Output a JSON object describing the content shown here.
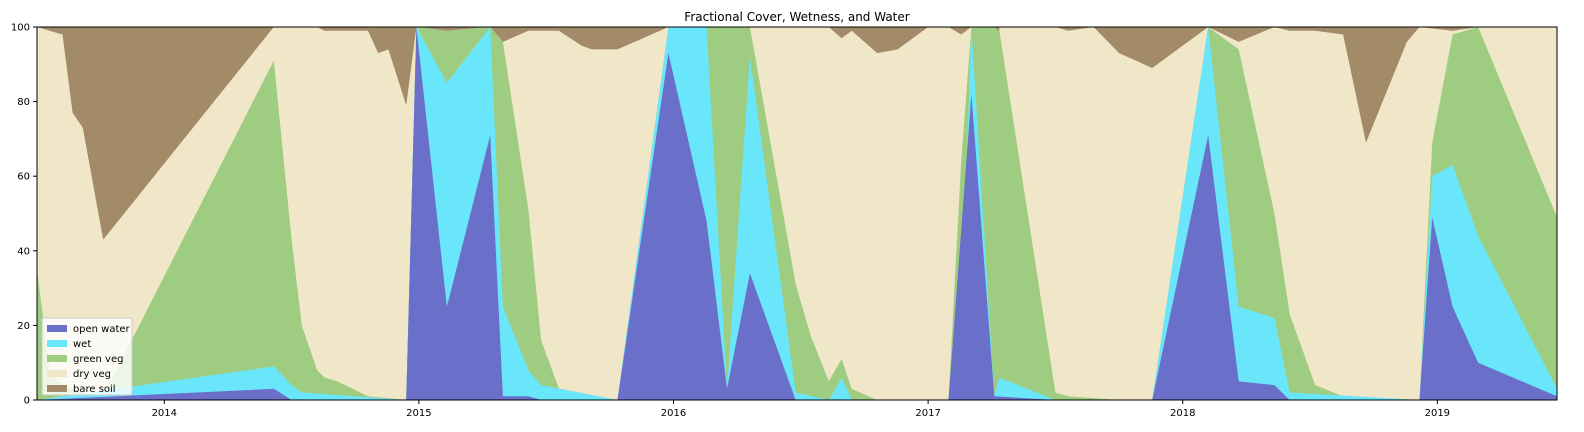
{
  "chart_data": {
    "type": "area",
    "stacked": true,
    "title": "Fractional Cover, Wetness, and Water",
    "xlabel": "",
    "ylabel": "",
    "xlim": [
      2013.5,
      2019.47
    ],
    "ylim": [
      0,
      100
    ],
    "xticks": [
      2014,
      2015,
      2016,
      2017,
      2018,
      2019
    ],
    "xtick_labels": [
      "2014",
      "2015",
      "2016",
      "2017",
      "2018",
      "2019"
    ],
    "yticks": [
      0,
      20,
      40,
      60,
      80,
      100
    ],
    "ytick_labels": [
      "0",
      "20",
      "40",
      "60",
      "80",
      "100"
    ],
    "grid": false,
    "legend_position": "bottom-left",
    "series": [
      {
        "name": "open water",
        "color": "#6a70c9",
        "points": [
          [
            2013.5,
            0
          ],
          [
            2014.43,
            3
          ],
          [
            2014.5,
            0
          ],
          [
            2014.95,
            0
          ],
          [
            2014.99,
            100
          ],
          [
            2015.11,
            25
          ],
          [
            2015.28,
            71
          ],
          [
            2015.33,
            1
          ],
          [
            2015.43,
            1
          ],
          [
            2015.48,
            0
          ],
          [
            2015.78,
            0
          ],
          [
            2015.98,
            93
          ],
          [
            2016.13,
            48
          ],
          [
            2016.21,
            3
          ],
          [
            2016.3,
            34
          ],
          [
            2016.48,
            0
          ],
          [
            2017.08,
            0
          ],
          [
            2017.17,
            82
          ],
          [
            2017.26,
            1
          ],
          [
            2017.5,
            0
          ],
          [
            2017.88,
            0
          ],
          [
            2018.1,
            71
          ],
          [
            2018.22,
            5
          ],
          [
            2018.36,
            4
          ],
          [
            2018.42,
            0
          ],
          [
            2018.93,
            0
          ],
          [
            2018.98,
            49
          ],
          [
            2019.06,
            25
          ],
          [
            2019.16,
            10
          ],
          [
            2019.47,
            1
          ]
        ]
      },
      {
        "name": "wet",
        "color": "#6ae6fa",
        "points": [
          [
            2013.5,
            0
          ],
          [
            2014.43,
            9
          ],
          [
            2014.5,
            4
          ],
          [
            2014.54,
            2
          ],
          [
            2014.95,
            0
          ],
          [
            2014.99,
            100
          ],
          [
            2015.11,
            85
          ],
          [
            2015.28,
            100
          ],
          [
            2015.33,
            25
          ],
          [
            2015.43,
            8
          ],
          [
            2015.48,
            4
          ],
          [
            2015.78,
            0
          ],
          [
            2015.98,
            100
          ],
          [
            2016.13,
            100
          ],
          [
            2016.21,
            3
          ],
          [
            2016.3,
            92
          ],
          [
            2016.48,
            2
          ],
          [
            2016.61,
            0
          ],
          [
            2016.66,
            6
          ],
          [
            2016.7,
            0
          ],
          [
            2017.08,
            0
          ],
          [
            2017.13,
            21
          ],
          [
            2017.17,
            100
          ],
          [
            2017.26,
            1
          ],
          [
            2017.28,
            6
          ],
          [
            2017.5,
            0
          ],
          [
            2017.88,
            0
          ],
          [
            2018.1,
            100
          ],
          [
            2018.22,
            25
          ],
          [
            2018.36,
            22
          ],
          [
            2018.42,
            2
          ],
          [
            2018.93,
            0
          ],
          [
            2018.98,
            60
          ],
          [
            2019.06,
            63
          ],
          [
            2019.16,
            44
          ],
          [
            2019.47,
            3
          ]
        ]
      },
      {
        "name": "green veg",
        "color": "#9ecd82",
        "points": [
          [
            2013.5,
            35
          ],
          [
            2013.55,
            8
          ],
          [
            2013.6,
            4
          ],
          [
            2013.68,
            2
          ],
          [
            2013.76,
            1
          ],
          [
            2014.43,
            91
          ],
          [
            2014.5,
            43
          ],
          [
            2014.54,
            20
          ],
          [
            2014.6,
            8
          ],
          [
            2014.63,
            6
          ],
          [
            2014.68,
            5
          ],
          [
            2014.8,
            1
          ],
          [
            2014.95,
            0
          ],
          [
            2014.99,
            100
          ],
          [
            2015.11,
            99
          ],
          [
            2015.28,
            100
          ],
          [
            2015.33,
            96
          ],
          [
            2015.43,
            51
          ],
          [
            2015.48,
            16
          ],
          [
            2015.55,
            3
          ],
          [
            2015.78,
            0
          ],
          [
            2015.98,
            100
          ],
          [
            2016.13,
            100
          ],
          [
            2016.21,
            100
          ],
          [
            2016.3,
            100
          ],
          [
            2016.48,
            31
          ],
          [
            2016.54,
            17
          ],
          [
            2016.61,
            5
          ],
          [
            2016.66,
            11
          ],
          [
            2016.7,
            3
          ],
          [
            2016.8,
            0
          ],
          [
            2017.08,
            0
          ],
          [
            2017.13,
            64
          ],
          [
            2017.17,
            100
          ],
          [
            2017.26,
            100
          ],
          [
            2017.28,
            99
          ],
          [
            2017.5,
            2
          ],
          [
            2017.55,
            1
          ],
          [
            2017.75,
            0
          ],
          [
            2017.88,
            0
          ],
          [
            2018.1,
            100
          ],
          [
            2018.22,
            94
          ],
          [
            2018.36,
            50
          ],
          [
            2018.42,
            23
          ],
          [
            2018.52,
            4
          ],
          [
            2018.63,
            1
          ],
          [
            2018.93,
            0
          ],
          [
            2018.98,
            69
          ],
          [
            2019.06,
            98
          ],
          [
            2019.16,
            100
          ],
          [
            2019.47,
            49
          ]
        ]
      },
      {
        "name": "dry veg",
        "color": "#f0e6c8",
        "points": [
          [
            2013.5,
            100
          ],
          [
            2013.55,
            99
          ],
          [
            2013.6,
            98
          ],
          [
            2013.64,
            77
          ],
          [
            2013.68,
            73
          ],
          [
            2013.76,
            43
          ],
          [
            2014.43,
            100
          ],
          [
            2014.6,
            100
          ],
          [
            2014.63,
            99
          ],
          [
            2014.68,
            99
          ],
          [
            2014.8,
            99
          ],
          [
            2014.84,
            93
          ],
          [
            2014.88,
            94
          ],
          [
            2014.95,
            79
          ],
          [
            2014.99,
            100
          ],
          [
            2015.11,
            99
          ],
          [
            2015.28,
            100
          ],
          [
            2015.33,
            96
          ],
          [
            2015.43,
            99
          ],
          [
            2015.55,
            99
          ],
          [
            2015.64,
            95
          ],
          [
            2015.68,
            94
          ],
          [
            2015.78,
            94
          ],
          [
            2015.98,
            100
          ],
          [
            2016.48,
            100
          ],
          [
            2016.54,
            100
          ],
          [
            2016.61,
            100
          ],
          [
            2016.66,
            97
          ],
          [
            2016.7,
            99
          ],
          [
            2016.8,
            93
          ],
          [
            2016.88,
            94
          ],
          [
            2017.0,
            100
          ],
          [
            2017.08,
            100
          ],
          [
            2017.13,
            98
          ],
          [
            2017.17,
            100
          ],
          [
            2017.2,
            100
          ],
          [
            2017.26,
            62
          ],
          [
            2017.28,
            100
          ],
          [
            2017.5,
            100
          ],
          [
            2017.55,
            99
          ],
          [
            2017.65,
            100
          ],
          [
            2017.75,
            93
          ],
          [
            2017.88,
            89
          ],
          [
            2018.1,
            100
          ],
          [
            2018.22,
            96
          ],
          [
            2018.36,
            100
          ],
          [
            2018.42,
            99
          ],
          [
            2018.52,
            99
          ],
          [
            2018.63,
            98
          ],
          [
            2018.72,
            69
          ],
          [
            2018.88,
            96
          ],
          [
            2018.93,
            100
          ],
          [
            2019.06,
            99
          ],
          [
            2019.16,
            100
          ],
          [
            2019.47,
            100
          ]
        ]
      },
      {
        "name": "bare soil",
        "color": "#a38a68",
        "points": [
          [
            2013.5,
            100
          ],
          [
            2019.47,
            100
          ]
        ]
      }
    ]
  }
}
